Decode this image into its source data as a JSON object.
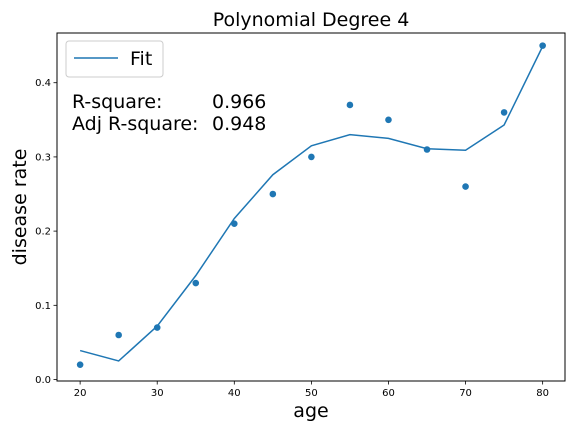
{
  "chart_data": {
    "type": "scatter",
    "title": "Polynomial Degree 4",
    "xlabel": "age",
    "ylabel": "disease rate",
    "xlim": [
      17.0,
      82.9
    ],
    "ylim": [
      -0.002,
      0.467
    ],
    "xticks": [
      20,
      30,
      40,
      50,
      60,
      70,
      80
    ],
    "yticks": [
      0.0,
      0.1,
      0.2,
      0.3,
      0.4
    ],
    "ytick_labels": [
      "0.0",
      "0.1",
      "0.2",
      "0.3",
      "0.4"
    ],
    "grid": false,
    "legend_position": "top-left",
    "series": [
      {
        "name": "",
        "kind": "scatter",
        "color": "#1f77b4",
        "x": [
          20,
          25,
          30,
          35,
          40,
          45,
          50,
          55,
          60,
          65,
          70,
          75,
          80
        ],
        "y": [
          0.02,
          0.06,
          0.07,
          0.13,
          0.21,
          0.25,
          0.3,
          0.37,
          0.35,
          0.31,
          0.26,
          0.36,
          0.45
        ]
      },
      {
        "name": "Fit",
        "kind": "line",
        "color": "#1f77b4",
        "x": [
          20,
          25,
          30,
          35,
          40,
          45,
          50,
          55,
          60,
          65,
          70,
          75,
          80
        ],
        "y": [
          0.039,
          0.025,
          0.072,
          0.14,
          0.217,
          0.276,
          0.315,
          0.33,
          0.325,
          0.311,
          0.309,
          0.343,
          0.449
        ]
      }
    ],
    "annotations": [
      {
        "label": "R-square:",
        "value": "0.966"
      },
      {
        "label": "Adj R-square:",
        "value": "0.948"
      }
    ]
  }
}
